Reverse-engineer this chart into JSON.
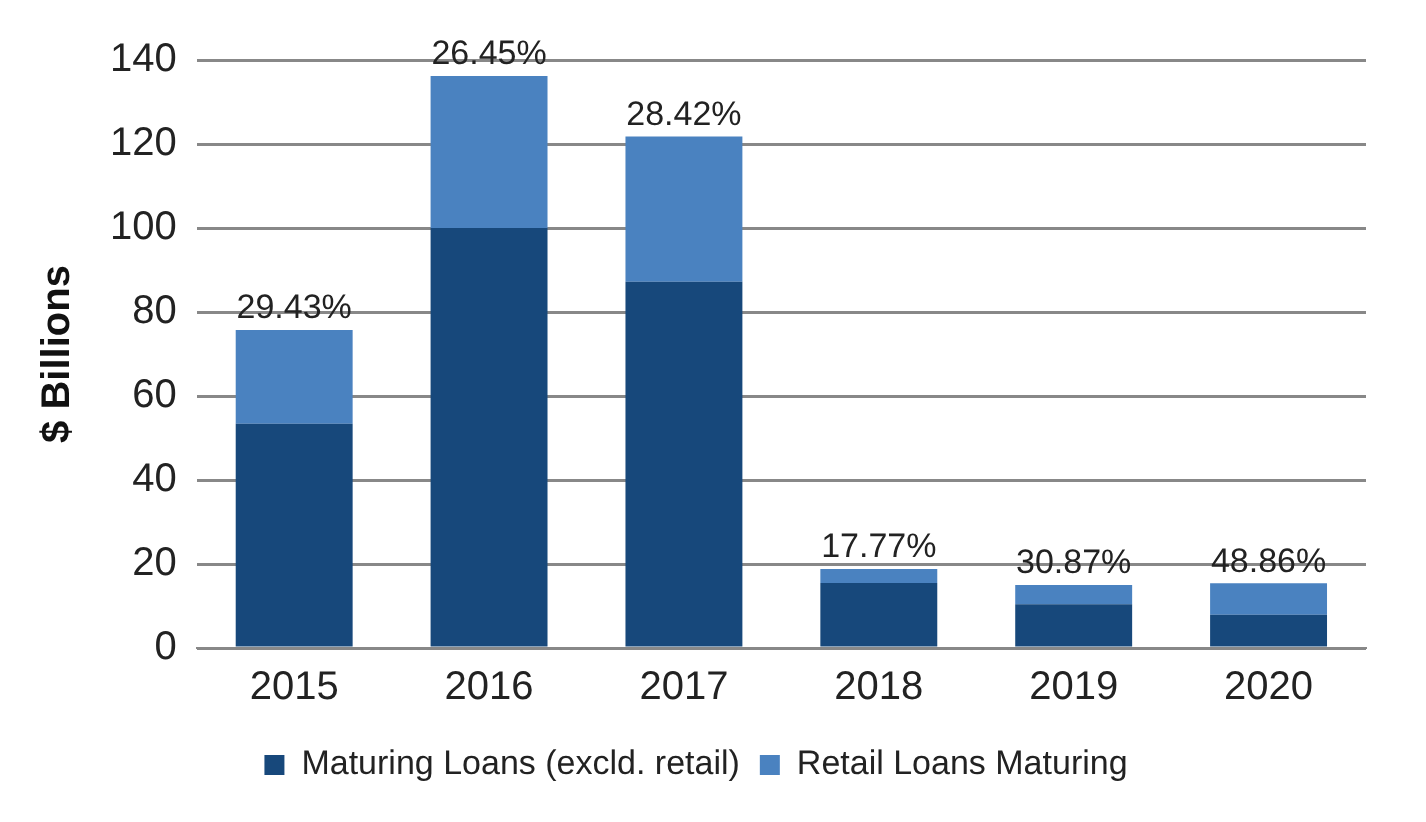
{
  "chart_data": {
    "type": "bar",
    "stacked": true,
    "ylabel": "$ Billions",
    "categories": [
      "2015",
      "2016",
      "2017",
      "2018",
      "2019",
      "2020"
    ],
    "series": [
      {
        "name": "Maturing Loans (excld. retail)",
        "color": "#17487b",
        "values": [
          53.4,
          100,
          87.2,
          15.5,
          10.4,
          7.9
        ]
      },
      {
        "name": "Retail Loans Maturing",
        "color": "#4a82c0",
        "values": [
          22.3,
          36.2,
          34.6,
          3.3,
          4.6,
          7.5
        ]
      }
    ],
    "annotations": [
      {
        "text": "29.43%",
        "x": "2015",
        "y": 75.7
      },
      {
        "text": "26.45%",
        "x": "2016",
        "y": 136.2
      },
      {
        "text": "28.42%",
        "x": "2017",
        "y": 121.8
      },
      {
        "text": "17.77%",
        "x": "2018",
        "y": 18.8
      },
      {
        "text": "30.87%",
        "x": "2019",
        "y": 15
      },
      {
        "text": "48.86%",
        "x": "2020",
        "y": 15.4
      }
    ],
    "ylim": [
      0,
      140
    ],
    "yticks": [
      0,
      20,
      40,
      60,
      80,
      100,
      120,
      140
    ],
    "grid": "y",
    "legend": "bottom"
  }
}
